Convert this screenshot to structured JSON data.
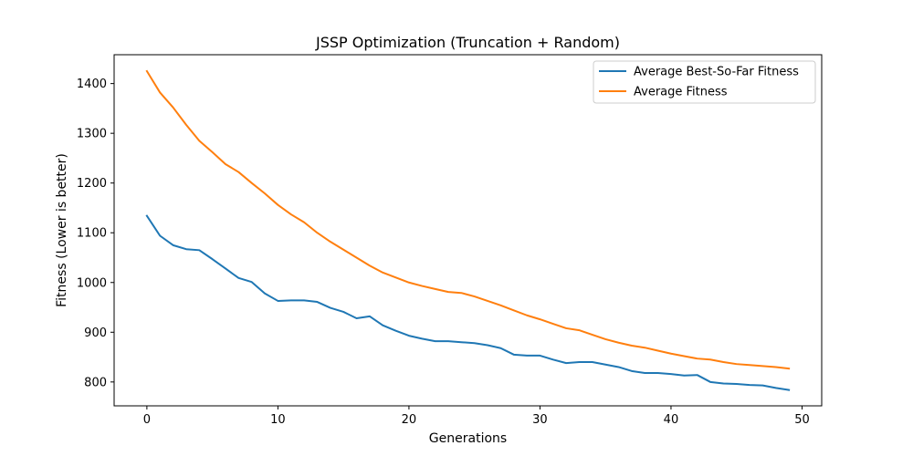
{
  "chart_data": {
    "type": "line",
    "title": "JSSP Optimization (Truncation + Random)",
    "xlabel": "Generations",
    "ylabel": "Fitness (Lower is better)",
    "xlim": [
      -2.5,
      51.5
    ],
    "ylim": [
      752,
      1458
    ],
    "xticks": [
      0,
      10,
      20,
      30,
      40,
      50
    ],
    "yticks": [
      800,
      900,
      1000,
      1100,
      1200,
      1300,
      1400
    ],
    "grid": false,
    "legend_position": "top-right",
    "x": [
      0,
      1,
      2,
      3,
      4,
      5,
      6,
      7,
      8,
      9,
      10,
      11,
      12,
      13,
      14,
      15,
      16,
      17,
      18,
      19,
      20,
      21,
      22,
      23,
      24,
      25,
      26,
      27,
      28,
      29,
      30,
      31,
      32,
      33,
      34,
      35,
      36,
      37,
      38,
      39,
      40,
      41,
      42,
      43,
      44,
      45,
      46,
      47,
      48,
      49
    ],
    "series": [
      {
        "name": "Average Best-So-Far Fitness",
        "color": "#1f77b4",
        "values": [
          1134,
          1094,
          1075,
          1067,
          1065,
          1047,
          1028,
          1009,
          1001,
          978,
          963,
          964,
          964,
          961,
          949,
          941,
          928,
          932,
          914,
          903,
          893,
          887,
          882,
          882,
          880,
          878,
          874,
          868,
          855,
          853,
          853,
          845,
          838,
          840,
          840,
          835,
          830,
          822,
          818,
          818,
          816,
          813,
          814,
          800,
          797,
          796,
          794,
          793,
          788,
          784
        ]
      },
      {
        "name": "Average Fitness",
        "color": "#ff7f0e",
        "values": [
          1425,
          1382,
          1352,
          1317,
          1285,
          1262,
          1238,
          1222,
          1200,
          1179,
          1156,
          1137,
          1121,
          1100,
          1082,
          1066,
          1050,
          1034,
          1020,
          1010,
          1000,
          993,
          987,
          981,
          979,
          972,
          963,
          954,
          944,
          934,
          926,
          917,
          908,
          904,
          895,
          886,
          879,
          873,
          869,
          863,
          857,
          852,
          847,
          845,
          840,
          836,
          834,
          832,
          830,
          827
        ]
      }
    ]
  }
}
